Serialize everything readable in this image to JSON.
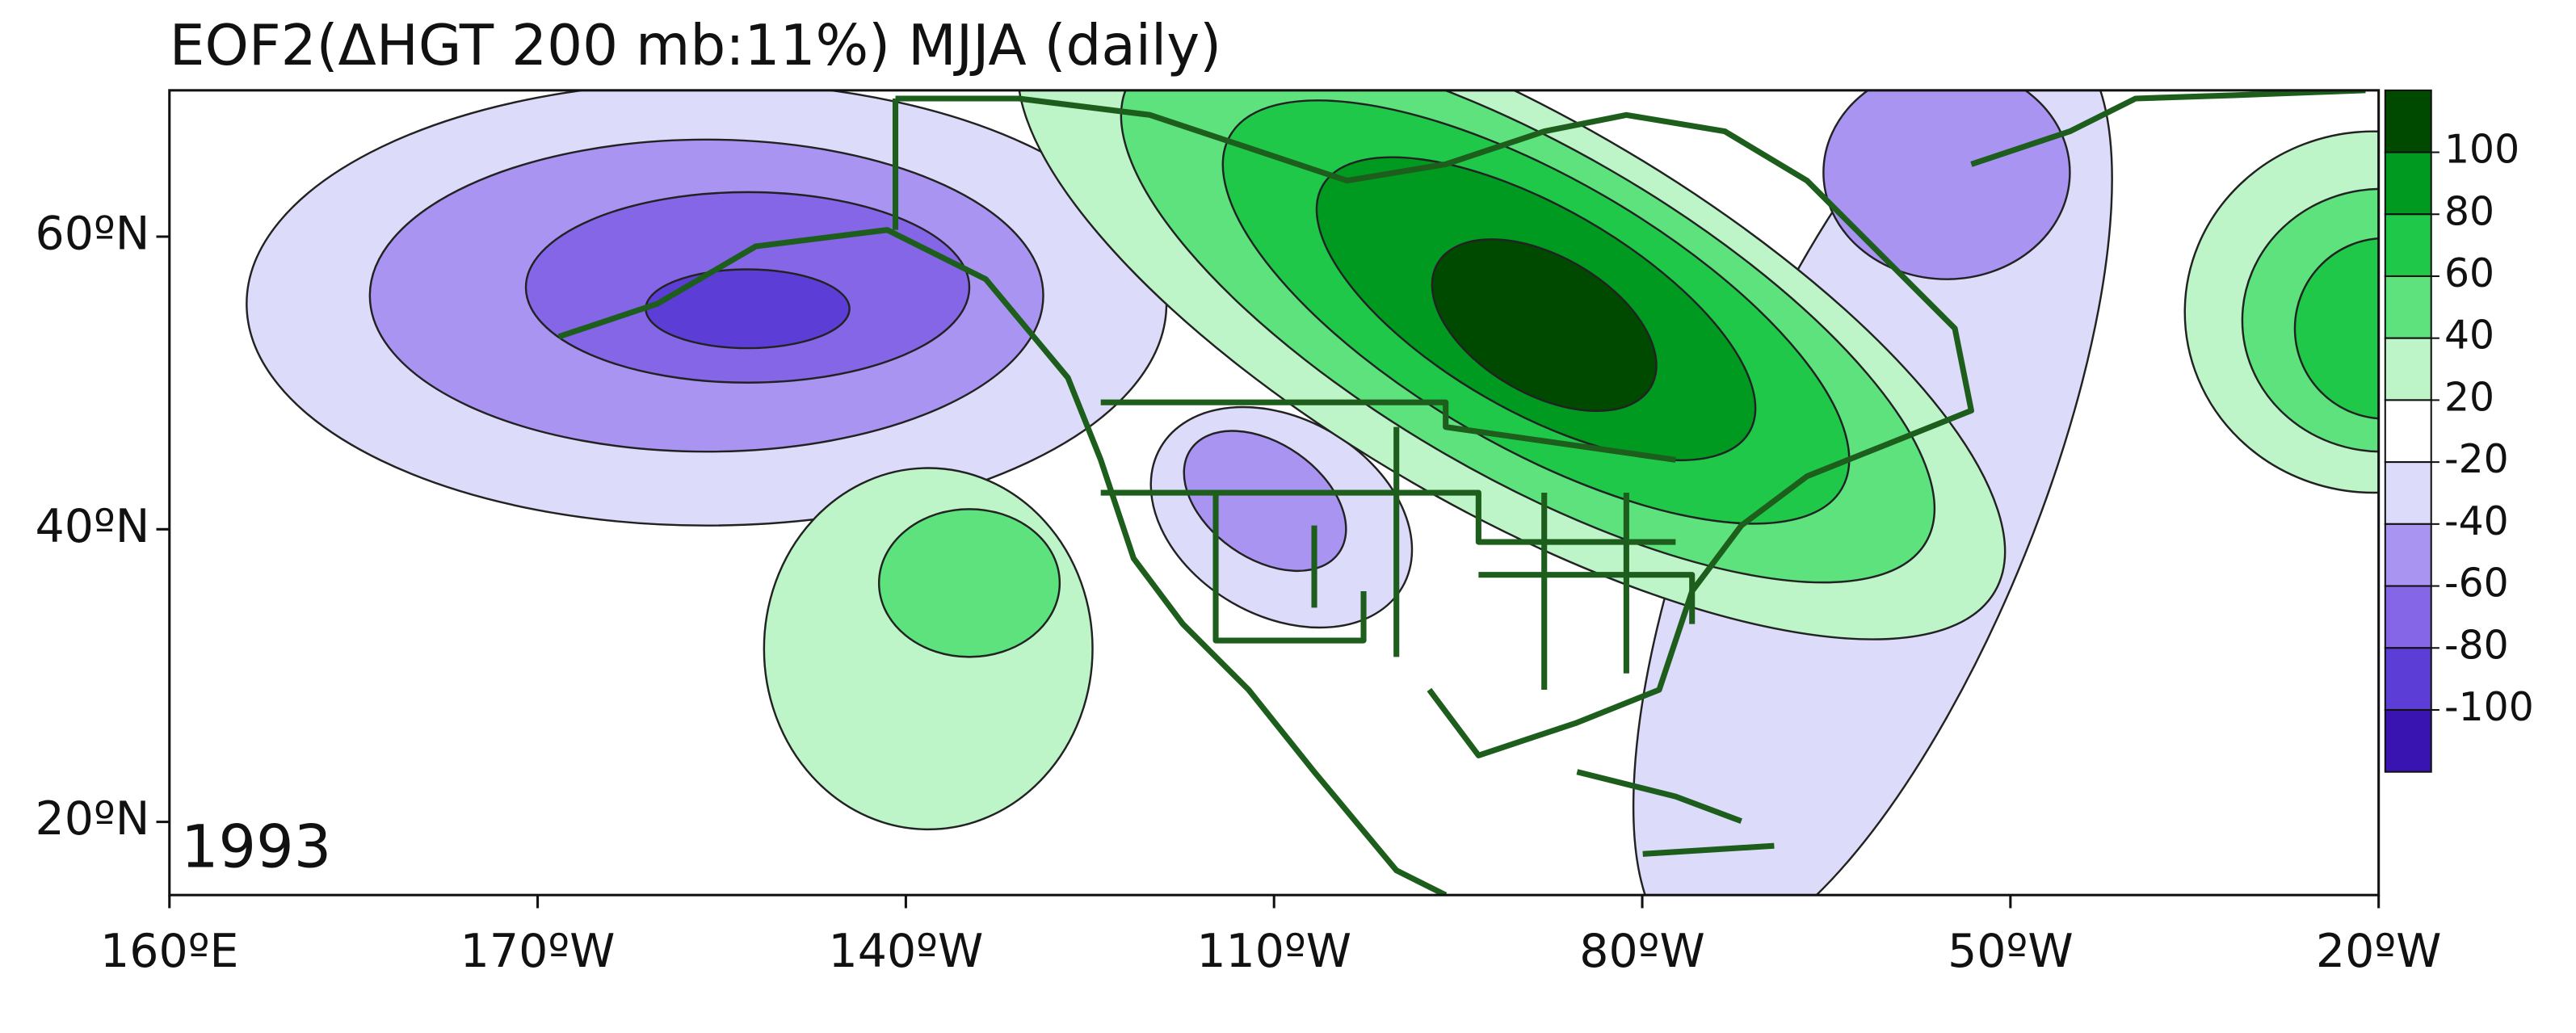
{
  "title": "EOF2(ΔHGT 200 mb:11%) MJJA (daily)",
  "panel_label": "1993",
  "map": {
    "xlim": [
      160,
      340
    ],
    "xticks": [
      {
        "value": 160,
        "label": "160ºE"
      },
      {
        "value": 190,
        "label": "170ºW"
      },
      {
        "value": 220,
        "label": "140ºW"
      },
      {
        "value": 250,
        "label": "110ºW"
      },
      {
        "value": 280,
        "label": "80ºW"
      },
      {
        "value": 310,
        "label": "50ºW"
      },
      {
        "value": 340,
        "label": "20ºW"
      }
    ],
    "ylim": [
      15,
      70
    ],
    "yticks": [
      {
        "value": 20,
        "label": "20ºN"
      },
      {
        "value": 40,
        "label": "40ºN"
      },
      {
        "value": 60,
        "label": "60ºN"
      }
    ]
  },
  "colorbar": {
    "levels": [
      100,
      80,
      60,
      40,
      20,
      -20,
      -40,
      -60,
      -80,
      -100
    ],
    "colors": [
      "#004a00",
      "#009a20",
      "#20c84a",
      "#5ee27e",
      "#bdf5c8",
      "#ffffff",
      "#dcdcfa",
      "#aa94f2",
      "#8466e6",
      "#5c3ed6",
      "#3a14b0"
    ]
  }
}
